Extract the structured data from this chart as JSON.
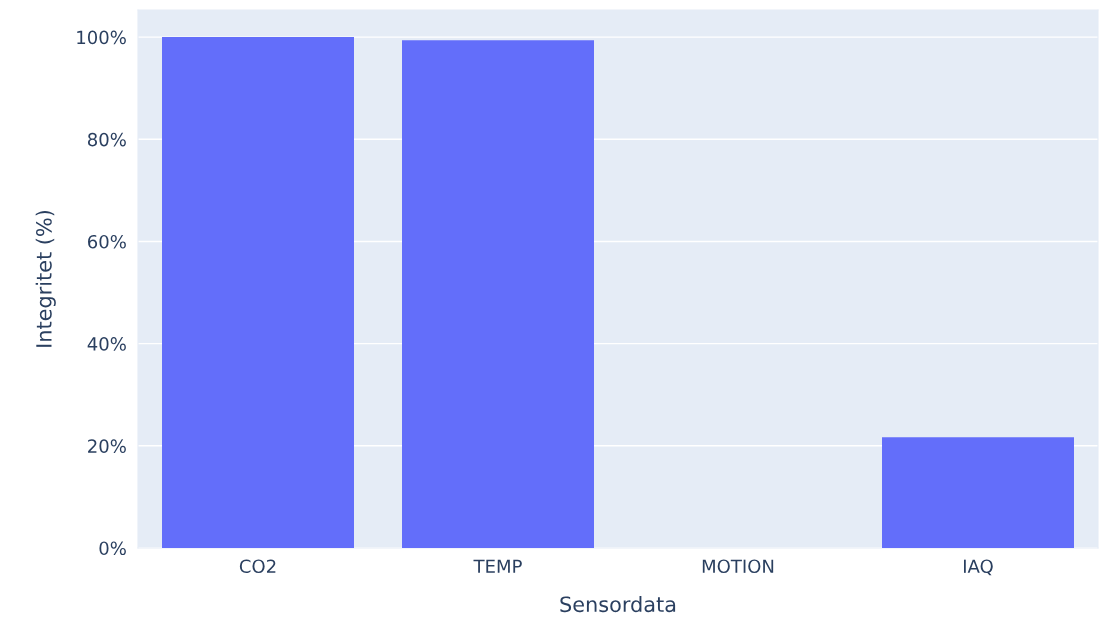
{
  "chart_data": {
    "type": "bar",
    "xlabel": "Sensordata",
    "ylabel": "Integritet (%)",
    "categories": [
      "CO2",
      "TEMP",
      "MOTION",
      "IAQ"
    ],
    "values": [
      100,
      99.4,
      0,
      21.7
    ],
    "color": "#636efa",
    "ylim": [
      0,
      105.3
    ],
    "yticks": [
      {
        "value": 0,
        "label": "0%"
      },
      {
        "value": 20,
        "label": "20%"
      },
      {
        "value": 40,
        "label": "40%"
      },
      {
        "value": 60,
        "label": "60%"
      },
      {
        "value": 80,
        "label": "80%"
      },
      {
        "value": 100,
        "label": "100%"
      }
    ],
    "grid": "y",
    "legend": false
  }
}
